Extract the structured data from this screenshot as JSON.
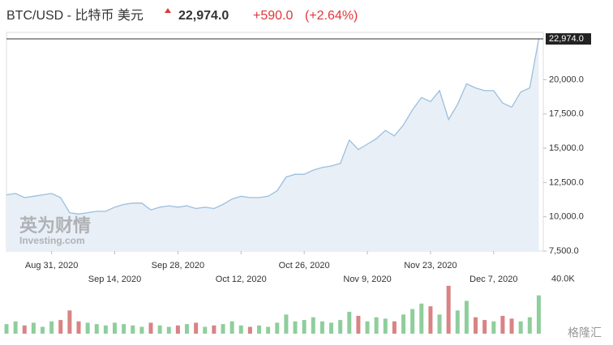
{
  "header": {
    "symbol": "BTC/USD - 比特币 美元",
    "price": "22,974.0",
    "change": "+590.0",
    "change_pct": "(+2.64%)"
  },
  "watermark": {
    "cn": "英为财情",
    "en": "Investing.com"
  },
  "badge": "格隆汇",
  "chart_data": [
    {
      "type": "area",
      "color": "#9bbfdf",
      "fill": "#e8eff6",
      "x": [
        "2020-08-21",
        "2020-08-23",
        "2020-08-25",
        "2020-08-27",
        "2020-08-29",
        "2020-08-31",
        "2020-09-02",
        "2020-09-04",
        "2020-09-06",
        "2020-09-08",
        "2020-09-10",
        "2020-09-12",
        "2020-09-14",
        "2020-09-16",
        "2020-09-18",
        "2020-09-20",
        "2020-09-22",
        "2020-09-24",
        "2020-09-26",
        "2020-09-28",
        "2020-09-30",
        "2020-10-02",
        "2020-10-04",
        "2020-10-06",
        "2020-10-08",
        "2020-10-10",
        "2020-10-12",
        "2020-10-14",
        "2020-10-16",
        "2020-10-18",
        "2020-10-20",
        "2020-10-22",
        "2020-10-24",
        "2020-10-26",
        "2020-10-28",
        "2020-10-30",
        "2020-11-01",
        "2020-11-03",
        "2020-11-05",
        "2020-11-07",
        "2020-11-09",
        "2020-11-11",
        "2020-11-13",
        "2020-11-15",
        "2020-11-17",
        "2020-11-19",
        "2020-11-21",
        "2020-11-23",
        "2020-11-25",
        "2020-11-27",
        "2020-11-29",
        "2020-12-01",
        "2020-12-03",
        "2020-12-05",
        "2020-12-07",
        "2020-12-09",
        "2020-12-11",
        "2020-12-13",
        "2020-12-15",
        "2020-12-17"
      ],
      "values": [
        11600,
        11700,
        11400,
        11500,
        11600,
        11700,
        11400,
        10300,
        10200,
        10300,
        10400,
        10400,
        10700,
        10900,
        11000,
        11000,
        10500,
        10700,
        10800,
        10700,
        10800,
        10600,
        10700,
        10600,
        10900,
        11300,
        11500,
        11400,
        11400,
        11500,
        11900,
        12900,
        13100,
        13100,
        13400,
        13600,
        13700,
        13900,
        15600,
        14900,
        15300,
        15700,
        16300,
        15900,
        16700,
        17800,
        18700,
        18400,
        19200,
        17100,
        18200,
        19700,
        19400,
        19200,
        19200,
        18300,
        18000,
        19100,
        19400,
        22974
      ],
      "xlim": [
        "2020-08-21",
        "2020-12-18"
      ],
      "xticks": [
        {
          "value": "2020-08-31",
          "label": "Aug 31, 2020"
        },
        {
          "value": "2020-09-14",
          "label": "Sep 14, 2020"
        },
        {
          "value": "2020-09-28",
          "label": "Sep 28, 2020"
        },
        {
          "value": "2020-10-12",
          "label": "Oct 12, 2020"
        },
        {
          "value": "2020-10-26",
          "label": "Oct 26, 2020"
        },
        {
          "value": "2020-11-09",
          "label": "Nov 9, 2020"
        },
        {
          "value": "2020-11-23",
          "label": "Nov 23, 2020"
        },
        {
          "value": "2020-12-07",
          "label": "Dec 7, 2020"
        }
      ],
      "ylim": [
        7500,
        23450
      ],
      "yticks": [
        {
          "value": 7500,
          "label": "7,500.0"
        },
        {
          "value": 10000,
          "label": "10,000.0"
        },
        {
          "value": 12500,
          "label": "12,500.0"
        },
        {
          "value": 15000,
          "label": "15,000.0"
        },
        {
          "value": 17500,
          "label": "17,500.0"
        },
        {
          "value": 20000,
          "label": "20,000.0"
        },
        {
          "value": 22974,
          "label": "22,974.0"
        }
      ]
    },
    {
      "type": "bar",
      "up_color": "#8fce9c",
      "down_color": "#d98384",
      "values": [
        7000,
        9000,
        6000,
        8000,
        5000,
        9000,
        10000,
        17000,
        9000,
        8000,
        7000,
        6000,
        8000,
        7000,
        6000,
        5000,
        8000,
        6000,
        5000,
        6000,
        7000,
        8000,
        5000,
        6000,
        7000,
        9000,
        6000,
        5000,
        6000,
        5000,
        8000,
        14000,
        9000,
        10000,
        12000,
        9000,
        8000,
        10000,
        16000,
        13000,
        9000,
        12000,
        11000,
        9000,
        14000,
        18000,
        22000,
        20000,
        14000,
        35000,
        17000,
        24000,
        12000,
        10000,
        9000,
        13000,
        11000,
        9000,
        12000,
        28000
      ],
      "ylim": [
        0,
        45000
      ],
      "yticks": [
        {
          "value": 40000,
          "label": "40.0K"
        }
      ]
    }
  ]
}
